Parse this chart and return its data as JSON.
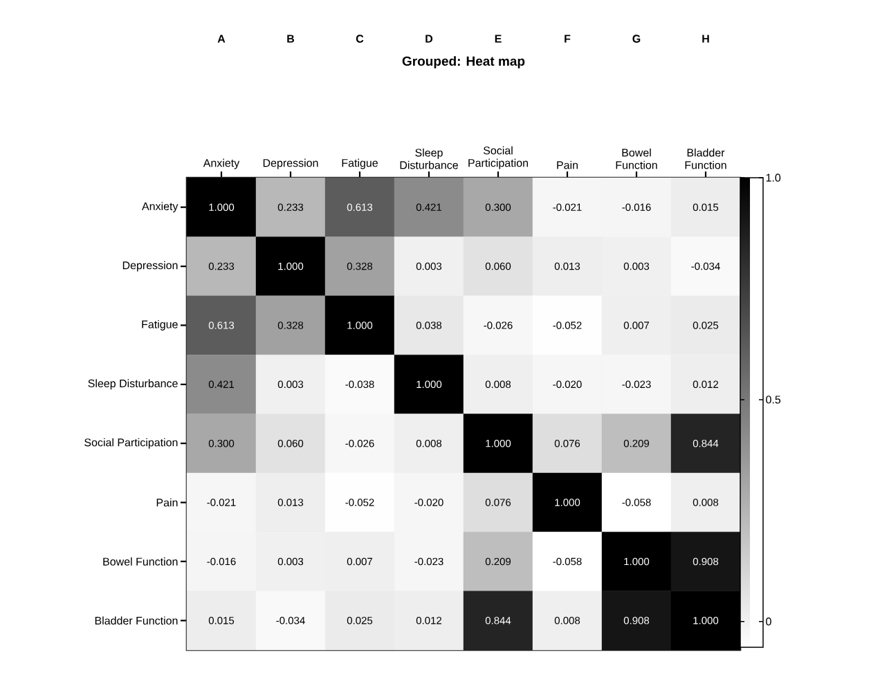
{
  "chart_data": {
    "type": "heatmap",
    "title": "Grouped: Heat map",
    "categories": [
      "Anxiety",
      "Depression",
      "Fatigue",
      "Sleep Disturbance",
      "Social Participation",
      "Pain",
      "Bowel Function",
      "Bladder Function"
    ],
    "y_categories": [
      "Anxiety",
      "Depression",
      "Fatigue",
      "Sleep Disturbance",
      "Social Participation",
      "Pain",
      "Bowel Function",
      "Bladder Function"
    ],
    "cells": [
      [
        1.0,
        0.233,
        0.613,
        0.421,
        0.3,
        -0.021,
        -0.016,
        0.015
      ],
      [
        0.233,
        1.0,
        0.328,
        0.003,
        0.06,
        0.013,
        0.003,
        -0.034
      ],
      [
        0.613,
        0.328,
        1.0,
        0.038,
        -0.026,
        -0.052,
        0.007,
        0.025
      ],
      [
        0.421,
        0.003,
        -0.038,
        1.0,
        0.008,
        -0.02,
        -0.023,
        0.012
      ],
      [
        0.3,
        0.06,
        -0.026,
        0.008,
        1.0,
        0.076,
        0.209,
        0.844
      ],
      [
        -0.021,
        0.013,
        -0.052,
        -0.02,
        0.076,
        1.0,
        -0.058,
        0.008
      ],
      [
        -0.016,
        0.003,
        0.007,
        -0.023,
        0.209,
        -0.058,
        1.0,
        0.908
      ],
      [
        0.015,
        -0.034,
        0.025,
        0.012,
        0.844,
        0.008,
        0.908,
        1.0
      ]
    ],
    "cell_labels": [
      [
        "1.000",
        "0.233",
        "0.613",
        "0.421",
        "0.300",
        "-0.021",
        "-0.016",
        "0.015"
      ],
      [
        "0.233",
        "1.000",
        "0.328",
        "0.003",
        "0.060",
        "0.013",
        "0.003",
        "-0.034"
      ],
      [
        "0.613",
        "0.328",
        "1.000",
        "0.038",
        "-0.026",
        "-0.052",
        "0.007",
        "0.025"
      ],
      [
        "0.421",
        "0.003",
        "-0.038",
        "1.000",
        "0.008",
        "-0.020",
        "-0.023",
        "0.012"
      ],
      [
        "0.300",
        "0.060",
        "-0.026",
        "0.008",
        "1.000",
        "0.076",
        "0.209",
        "0.844"
      ],
      [
        "-0.021",
        "0.013",
        "-0.052",
        "-0.020",
        "0.076",
        "1.000",
        "-0.058",
        "0.008"
      ],
      [
        "-0.016",
        "0.003",
        "0.007",
        "-0.023",
        "0.209",
        "-0.058",
        "1.000",
        "0.908"
      ],
      [
        "0.015",
        "-0.034",
        "0.025",
        "0.012",
        "0.844",
        "0.008",
        "0.908",
        "1.000"
      ]
    ],
    "clim": [
      -0.058,
      1.0
    ],
    "cticks": [
      {
        "value": 0,
        "label": "0"
      },
      {
        "value": 0.5,
        "label": "0.5"
      },
      {
        "value": 1.0,
        "label": "1.0"
      }
    ],
    "annotations": [
      "A",
      "B",
      "C",
      "D",
      "E",
      "F",
      "G",
      "H"
    ]
  }
}
